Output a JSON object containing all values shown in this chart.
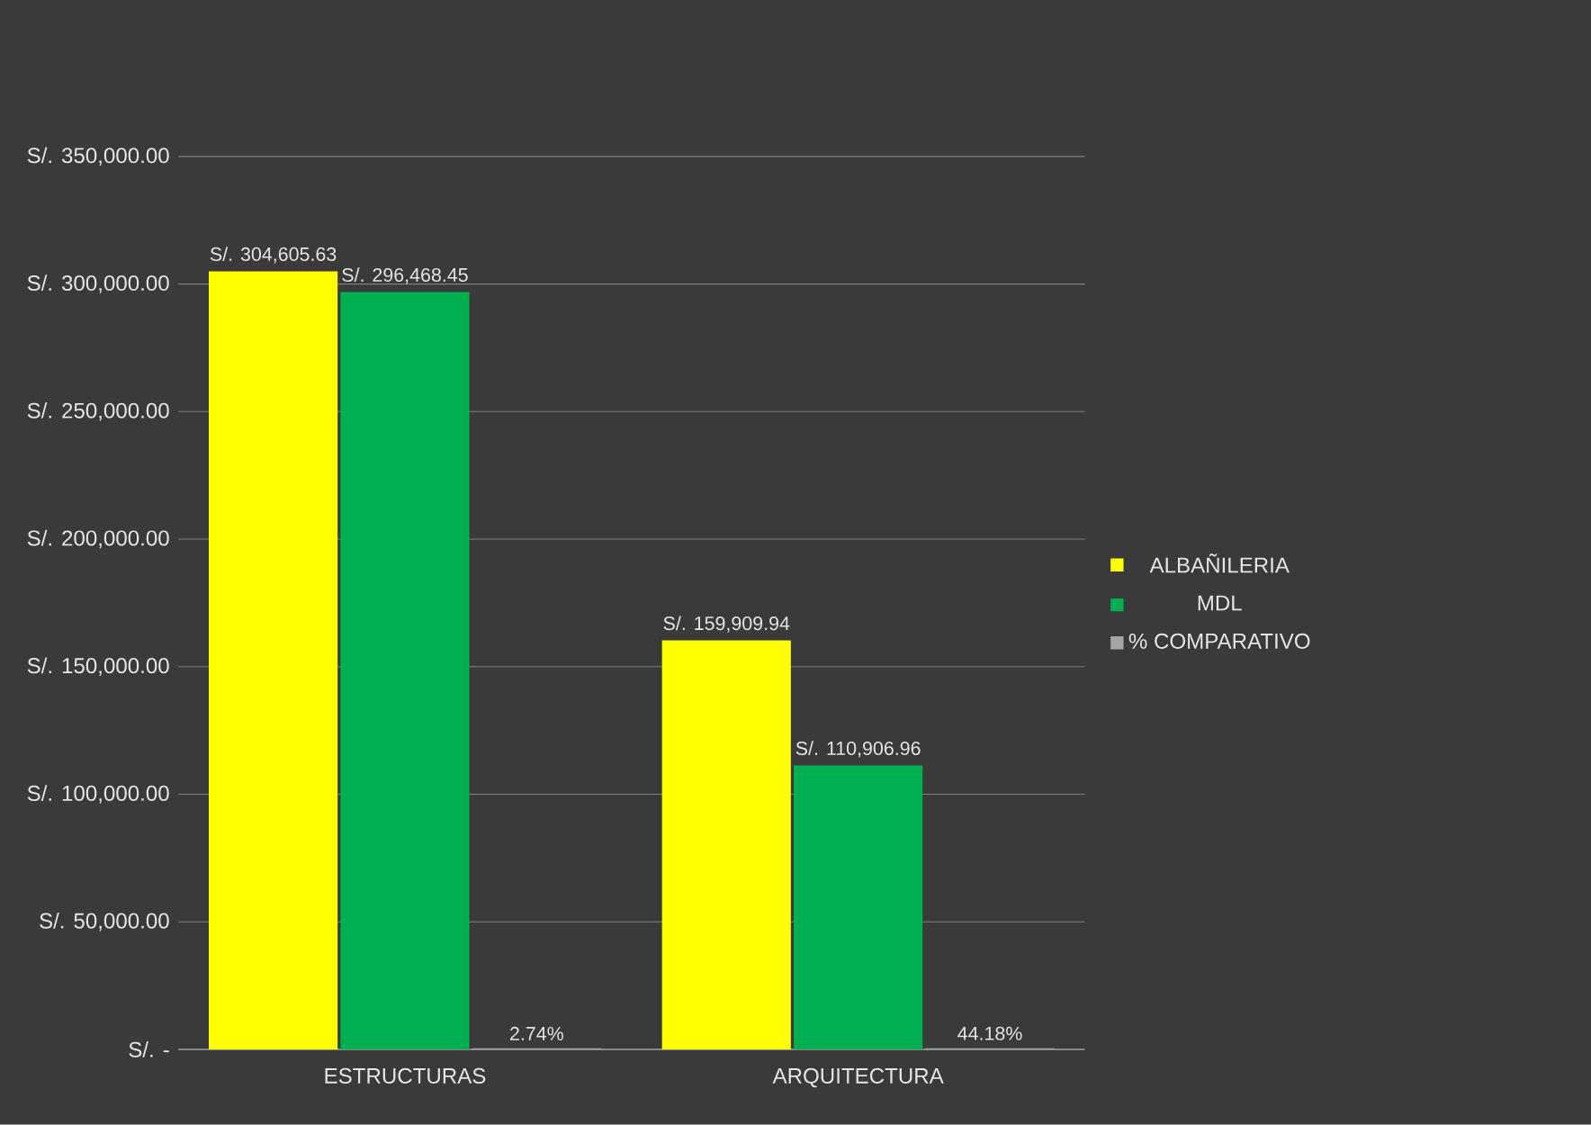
{
  "chart_data": {
    "type": "bar",
    "categories": [
      "ESTRUCTURAS",
      "ARQUITECTURA"
    ],
    "series": [
      {
        "name": "ALBAÑILERIA",
        "color": "#ffff00",
        "values": [
          304605.63,
          159909.94
        ],
        "value_labels": [
          "S/. 304,605.63",
          "S/. 159,909.94"
        ]
      },
      {
        "name": "MDL",
        "color": "#00b050",
        "values": [
          296468.45,
          110906.96
        ],
        "value_labels": [
          "S/. 296,468.45",
          "S/. 110,906.96"
        ]
      },
      {
        "name": "% COMPARATIVO",
        "color": "#a5a5a5",
        "values": [
          2.74,
          44.18
        ],
        "value_labels": [
          "2.74%",
          "44.18%"
        ]
      }
    ],
    "ylim": [
      0,
      350000
    ],
    "yticks": [
      {
        "value": 0,
        "label": "S/. -"
      },
      {
        "value": 50000,
        "label": "S/. 50,000.00"
      },
      {
        "value": 100000,
        "label": "S/. 100,000.00"
      },
      {
        "value": 150000,
        "label": "S/. 150,000.00"
      },
      {
        "value": 200000,
        "label": "S/. 200,000.00"
      },
      {
        "value": 250000,
        "label": "S/. 250,000.00"
      },
      {
        "value": 300000,
        "label": "S/. 300,000.00"
      },
      {
        "value": 350000,
        "label": "S/. 350,000.00"
      }
    ],
    "grid": "y",
    "legend": "right"
  }
}
